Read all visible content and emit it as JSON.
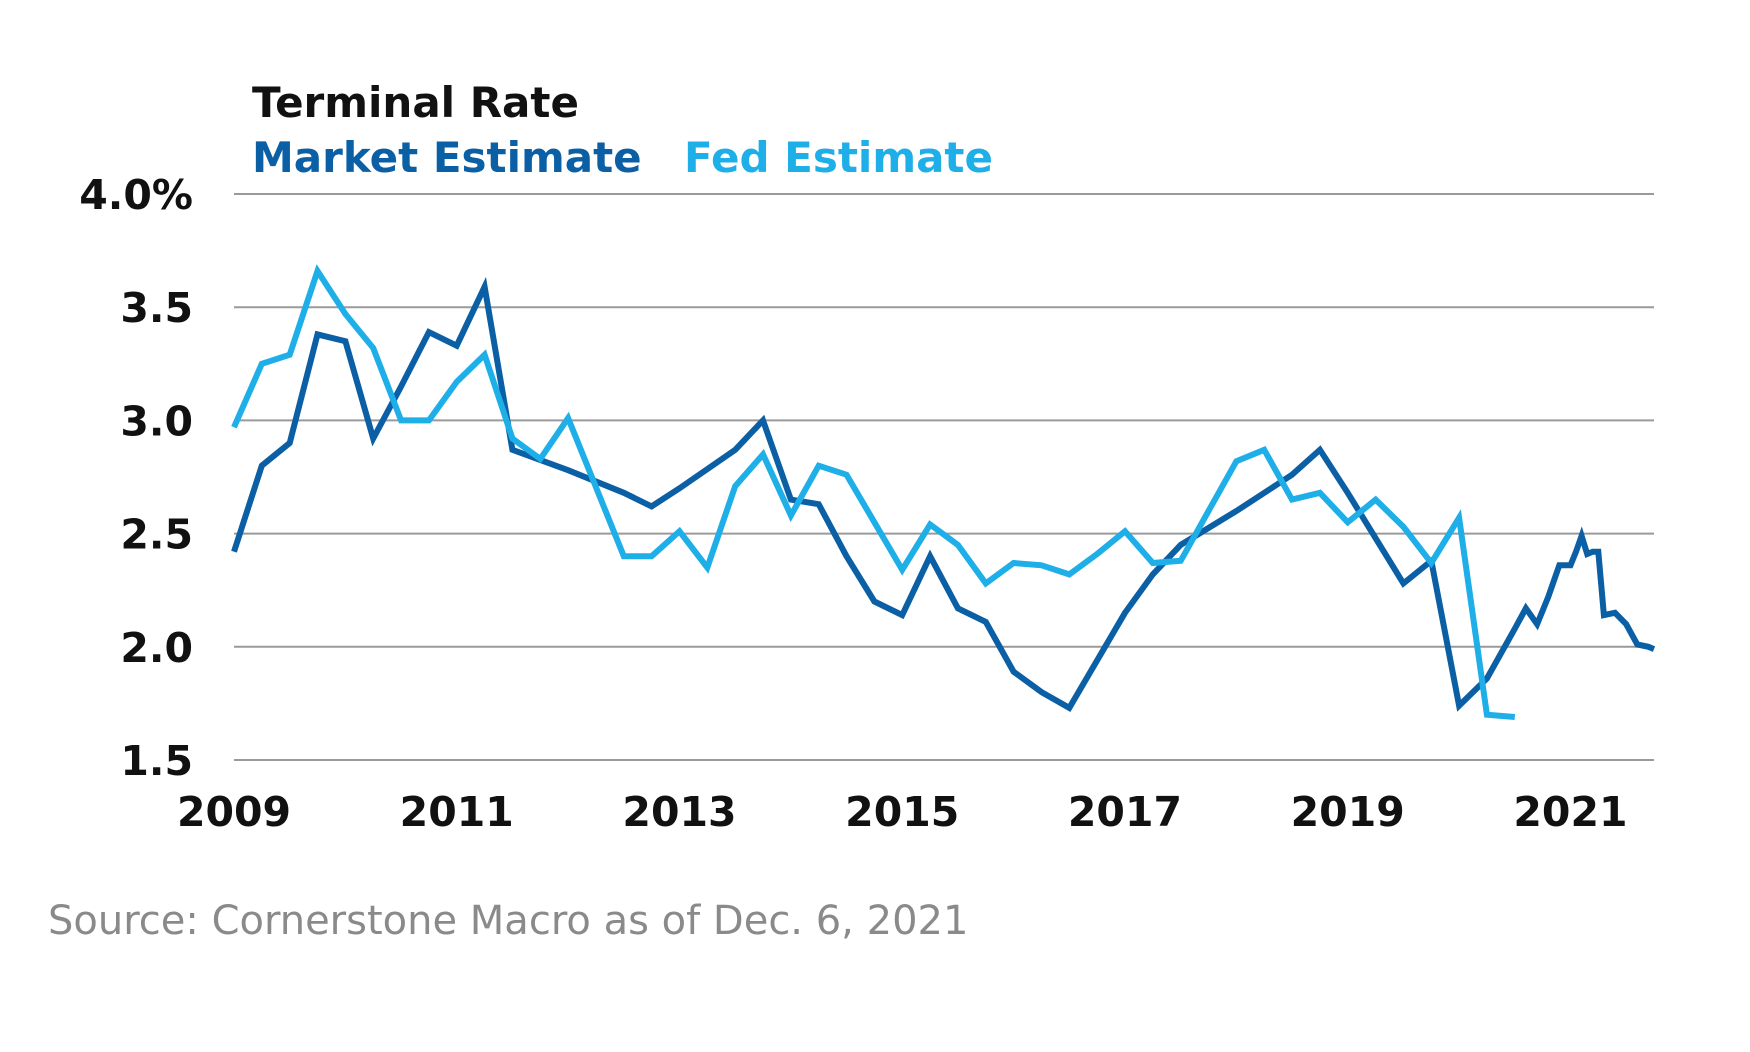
{
  "chart_data": {
    "type": "line",
    "title": "Terminal Rate",
    "xlabel": "",
    "ylabel": "",
    "xlim": [
      2009.0,
      2021.75
    ],
    "ylim": [
      1.5,
      4.0
    ],
    "x_ticks": [
      2009,
      2011,
      2013,
      2015,
      2017,
      2019,
      2021
    ],
    "x_tick_labels": [
      "2009",
      "2011",
      "2013",
      "2015",
      "2017",
      "2019",
      "2021"
    ],
    "y_ticks": [
      1.5,
      2.0,
      2.5,
      3.0,
      3.5,
      4.0
    ],
    "y_tick_labels": [
      "1.5",
      "2.0",
      "2.5",
      "3.0",
      "3.5",
      "4.0%"
    ],
    "grid": true,
    "legend": "top-left",
    "series": [
      {
        "name": "Market Estimate",
        "color": "#0b5fa5",
        "x": [
          2009.0,
          2009.25,
          2009.5,
          2009.75,
          2010.0,
          2010.25,
          2010.5,
          2010.75,
          2011.0,
          2011.25,
          2011.5,
          2012.0,
          2012.5,
          2012.75,
          2013.0,
          2013.5,
          2013.75,
          2014.0,
          2014.25,
          2014.5,
          2014.75,
          2015.0,
          2015.25,
          2015.5,
          2015.75,
          2016.0,
          2016.25,
          2016.5,
          2017.0,
          2017.25,
          2017.5,
          2018.0,
          2018.5,
          2018.75,
          2019.0,
          2019.5,
          2019.75,
          2020.0,
          2020.25,
          2020.5,
          2020.6,
          2020.7,
          2020.8,
          2020.9,
          2021.0,
          2021.05,
          2021.1,
          2021.15,
          2021.2,
          2021.25,
          2021.3,
          2021.4,
          2021.5,
          2021.6,
          2021.7,
          2021.75
        ],
        "values": [
          2.42,
          2.8,
          2.9,
          3.38,
          3.35,
          2.92,
          3.15,
          3.39,
          3.33,
          3.59,
          2.87,
          2.78,
          2.68,
          2.62,
          2.7,
          2.87,
          3.0,
          2.65,
          2.63,
          2.4,
          2.2,
          2.14,
          2.4,
          2.17,
          2.11,
          1.89,
          1.8,
          1.73,
          2.15,
          2.32,
          2.45,
          2.6,
          2.76,
          2.87,
          2.68,
          2.28,
          2.38,
          1.74,
          1.86,
          2.08,
          2.17,
          2.1,
          2.22,
          2.36,
          2.36,
          2.42,
          2.49,
          2.41,
          2.42,
          2.42,
          2.14,
          2.15,
          2.1,
          2.01,
          2.0,
          1.99
        ]
      },
      {
        "name": "Fed Estimate",
        "color": "#1eaee8",
        "x": [
          2009.0,
          2009.25,
          2009.5,
          2009.75,
          2010.0,
          2010.25,
          2010.5,
          2010.75,
          2011.0,
          2011.25,
          2011.5,
          2011.75,
          2012.0,
          2012.5,
          2012.75,
          2013.0,
          2013.25,
          2013.5,
          2013.75,
          2014.0,
          2014.25,
          2014.5,
          2014.75,
          2015.0,
          2015.25,
          2015.5,
          2015.75,
          2016.0,
          2016.25,
          2016.5,
          2016.75,
          2017.0,
          2017.25,
          2017.5,
          2017.75,
          2018.0,
          2018.25,
          2018.5,
          2018.75,
          2019.0,
          2019.25,
          2019.5,
          2019.75,
          2020.0,
          2020.25,
          2020.5
        ],
        "values": [
          2.97,
          3.25,
          3.29,
          3.66,
          3.47,
          3.32,
          3.0,
          3.0,
          3.17,
          3.29,
          2.92,
          2.83,
          3.01,
          2.4,
          2.4,
          2.51,
          2.35,
          2.71,
          2.85,
          2.58,
          2.8,
          2.76,
          2.55,
          2.34,
          2.54,
          2.45,
          2.28,
          2.37,
          2.36,
          2.32,
          2.41,
          2.51,
          2.37,
          2.38,
          2.6,
          2.82,
          2.87,
          2.65,
          2.68,
          2.55,
          2.65,
          2.53,
          2.37,
          2.57,
          1.7,
          1.69
        ]
      }
    ]
  },
  "source_text": "Source: Cornerstone Macro as of Dec. 6, 2021"
}
